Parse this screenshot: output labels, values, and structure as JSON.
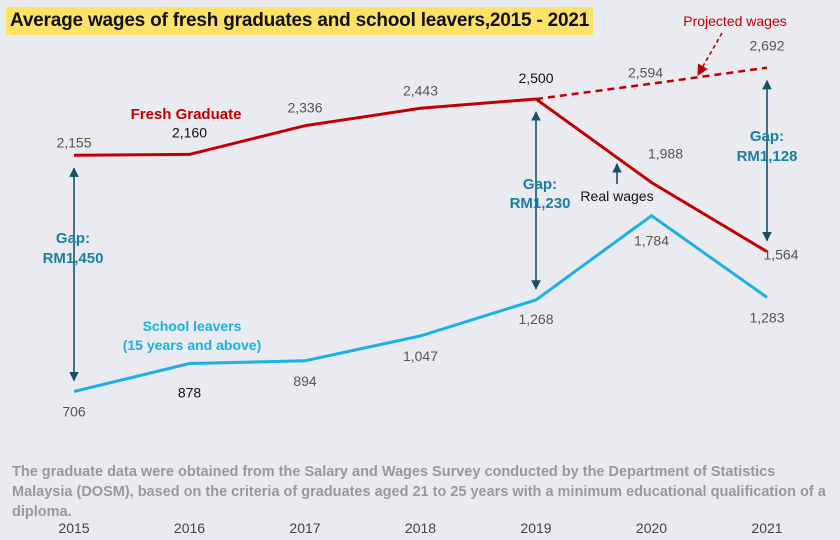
{
  "title": "Average wages of fresh graduates and school leavers,2015 - 2021",
  "footnote": "The graduate data were obtained from the Salary and Wages Survey conducted by the Department of Statistics Malaysia (DOSM), based on the criteria of graduates aged 21 to 25 years with a minimum educational qualification of a diploma.",
  "colors": {
    "fresh_graduate": "#c00000",
    "school_leavers": "#1bb0e6",
    "gap": "#1a7fa4",
    "title_highlight": "#fde26a"
  },
  "chart_data": {
    "type": "line",
    "title": "Average wages of fresh graduates and school leavers,2015 - 2021",
    "xlabel": "",
    "ylabel": "",
    "x": [
      "2015",
      "2016",
      "2017",
      "2018",
      "2019",
      "2020",
      "2021"
    ],
    "ylim": [
      600,
      2800
    ],
    "grid": false,
    "series": [
      {
        "name": "Fresh Graduate",
        "label": "Fresh Graduate",
        "style": "solid",
        "x": [
          "2015",
          "2016",
          "2017",
          "2018",
          "2019",
          "2020",
          "2021"
        ],
        "values": [
          2155,
          2160,
          2336,
          2443,
          2500,
          1988,
          1564
        ],
        "value_labels": [
          "2,155",
          "2,160",
          "2,336",
          "2,443",
          "2,500",
          "1,988",
          "1,564"
        ]
      },
      {
        "name": "Projected wages",
        "label": "Projected wages",
        "style": "dashed",
        "x": [
          "2019",
          "2020",
          "2021"
        ],
        "values": [
          2500,
          2594,
          2692
        ],
        "value_labels": [
          "",
          "2,594",
          "2,692"
        ]
      },
      {
        "name": "School leavers (15 years and above)",
        "label_line1": "School leavers",
        "label_line2": "(15 years and above)",
        "style": "solid",
        "x": [
          "2015",
          "2016",
          "2017",
          "2018",
          "2019",
          "2020",
          "2021"
        ],
        "values": [
          706,
          878,
          894,
          1047,
          1268,
          1784,
          1283
        ],
        "value_labels": [
          "706",
          "878",
          "894",
          "1,047",
          "1,268",
          "1,784",
          "1,283"
        ]
      }
    ],
    "annotations": {
      "real_wages": "Real wages",
      "gaps": [
        {
          "year": "2015",
          "label_line1": "Gap:",
          "label_line2": "RM1,450",
          "from": 2155,
          "to": 706
        },
        {
          "year": "2019",
          "label_line1": "Gap:",
          "label_line2": "RM1,230",
          "from": 2500,
          "to": 1268
        },
        {
          "year": "2021",
          "label_line1": "Gap:",
          "label_line2": "RM1,128",
          "from": 2692,
          "to": 1564
        }
      ]
    }
  }
}
